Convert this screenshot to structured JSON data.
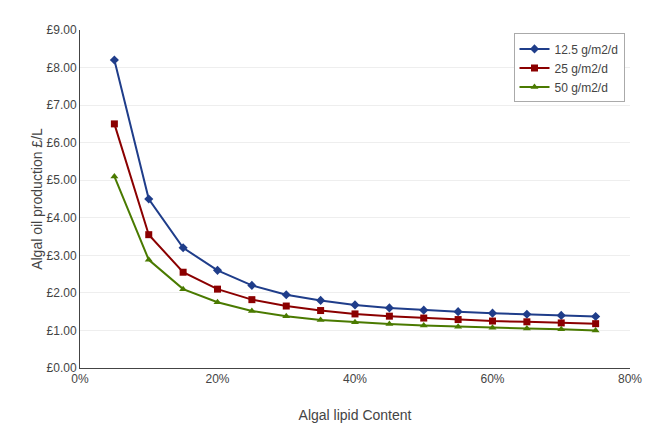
{
  "chart_data": {
    "type": "line",
    "x": [
      0.05,
      0.1,
      0.15,
      0.2,
      0.25,
      0.3,
      0.35,
      0.4,
      0.45,
      0.5,
      0.55,
      0.6,
      0.65,
      0.7,
      0.75
    ],
    "series": [
      {
        "name": "12.5 g/m2/d",
        "color": "#1F3D8A",
        "marker": "diamond",
        "values": [
          8.2,
          4.5,
          3.2,
          2.6,
          2.2,
          1.95,
          1.8,
          1.68,
          1.6,
          1.54,
          1.5,
          1.46,
          1.43,
          1.4,
          1.37
        ]
      },
      {
        "name": "25 g/m2/d",
        "color": "#8B0000",
        "marker": "square",
        "values": [
          6.5,
          3.55,
          2.55,
          2.1,
          1.82,
          1.65,
          1.53,
          1.44,
          1.38,
          1.33,
          1.29,
          1.25,
          1.23,
          1.2,
          1.18
        ]
      },
      {
        "name": "50 g/m2/d",
        "color": "#4A7A00",
        "marker": "triangle-up",
        "values": [
          5.1,
          2.88,
          2.1,
          1.75,
          1.52,
          1.38,
          1.28,
          1.22,
          1.17,
          1.13,
          1.1,
          1.07,
          1.05,
          1.03,
          1.0
        ]
      }
    ],
    "xlabel": "Algal lipid Content",
    "ylabel": "Algal oil production £/L",
    "xlim": [
      0.0,
      0.8
    ],
    "ylim": [
      0.0,
      9.0
    ],
    "xticks": [
      {
        "value": 0.0,
        "label": "0%"
      },
      {
        "value": 0.2,
        "label": "20%"
      },
      {
        "value": 0.4,
        "label": "40%"
      },
      {
        "value": 0.6,
        "label": "60%"
      },
      {
        "value": 0.8,
        "label": "80%"
      }
    ],
    "yticks": [
      {
        "value": 0.0,
        "label": "£0.00"
      },
      {
        "value": 1.0,
        "label": "£1.00"
      },
      {
        "value": 2.0,
        "label": "£2.00"
      },
      {
        "value": 3.0,
        "label": "£3.00"
      },
      {
        "value": 4.0,
        "label": "£4.00"
      },
      {
        "value": 5.0,
        "label": "£5.00"
      },
      {
        "value": 6.0,
        "label": "£6.00"
      },
      {
        "value": 7.0,
        "label": "£7.00"
      },
      {
        "value": 8.0,
        "label": "£8.00"
      },
      {
        "value": 9.0,
        "label": "£9.00"
      }
    ],
    "grid": "y",
    "legend": "upper right"
  }
}
